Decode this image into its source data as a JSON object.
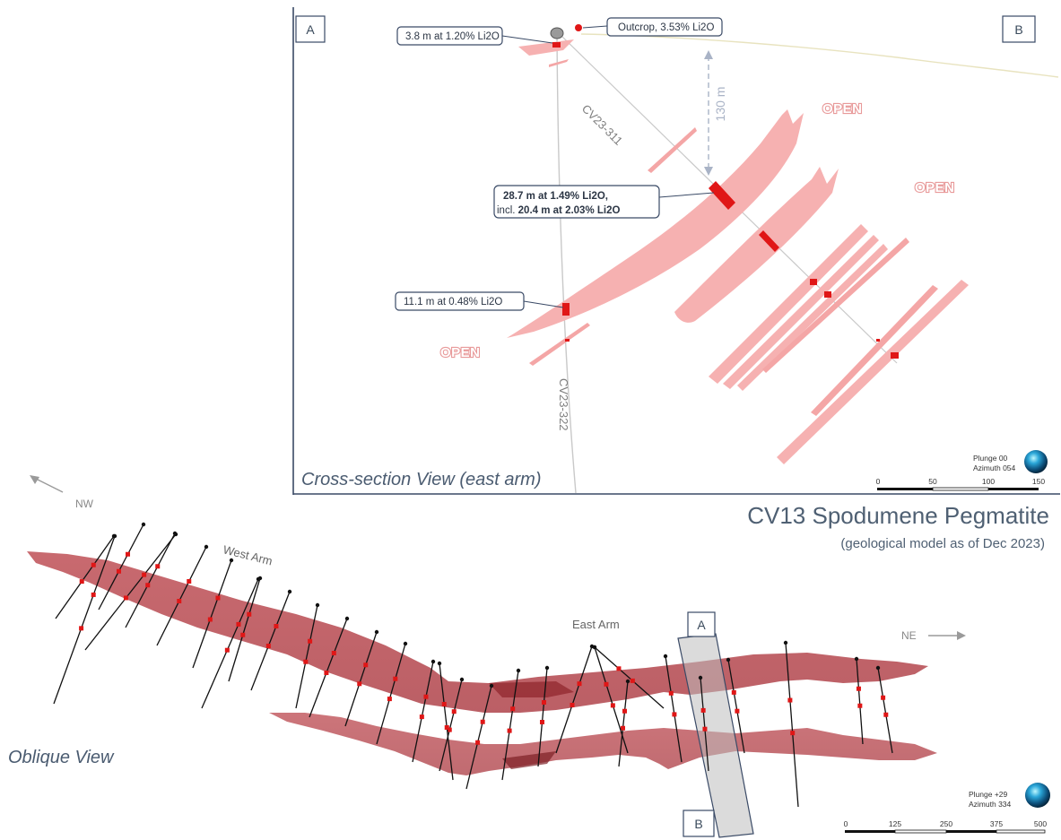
{
  "title": "CV13 Spodumene Pegmatite",
  "subtitle": "(geological model as of Dec 2023)",
  "cross_section": {
    "view_title": "Cross-section View (east arm)",
    "corner_labels": {
      "left": "A",
      "right": "B"
    },
    "callouts": {
      "top_hole": "3.8 m at 1.20% Li2O",
      "outcrop": "Outcrop, 3.53% Li2O",
      "main_line1": "28.7 m at 1.49% Li2O,",
      "main_line2_prefix": "incl. ",
      "main_line2_value": "20.4 m at 2.03% Li2O",
      "lower_hole": "11.1 m at 0.48% Li2O"
    },
    "open_labels": [
      "OPEN",
      "OPEN",
      "OPEN"
    ],
    "hole_labels": {
      "hole_a": "CV23-311",
      "hole_b": "CV23-322"
    },
    "depth_annotation": "130 m",
    "orientation": {
      "plunge": "Plunge 00",
      "azimuth": "Azimuth 054"
    },
    "scale_ticks": [
      "0",
      "50",
      "100",
      "150"
    ],
    "colors": {
      "pegmatite": "#f6b1b1",
      "intercept": "#e01616",
      "frame": "#3a4a66"
    }
  },
  "oblique": {
    "view_title": "Oblique View",
    "arm_labels": {
      "west": "West Arm",
      "east": "East Arm"
    },
    "directions": {
      "nw": "NW",
      "ne": "NE"
    },
    "section_labels": {
      "top": "A",
      "bottom": "B"
    },
    "orientation": {
      "plunge": "Plunge +29",
      "azimuth": "Azimuth 334"
    },
    "scale_ticks": [
      "0",
      "125",
      "250",
      "375",
      "500"
    ],
    "colors": {
      "body": "#b8353b",
      "drill_trace": "#111111"
    }
  }
}
